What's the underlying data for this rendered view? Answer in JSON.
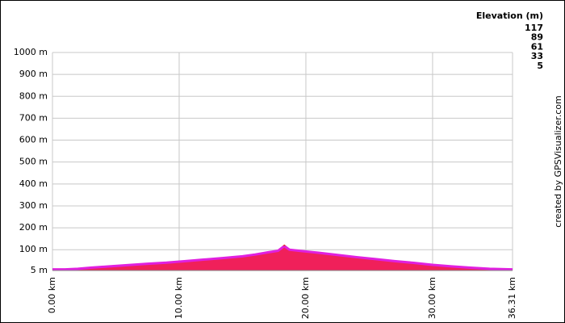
{
  "chart_data": {
    "type": "area",
    "credit": "created by GPSVisualizer.com",
    "legend": {
      "title": "Elevation (m)",
      "items": [
        {
          "value": 117,
          "color": "#e020e0"
        },
        {
          "value": 89,
          "color": "#2040e0"
        },
        {
          "value": 61,
          "color": "#20e040"
        },
        {
          "value": 33,
          "color": "#e0e020"
        },
        {
          "value": 5,
          "color": "#e02020"
        }
      ]
    },
    "fill": "#f0205a",
    "x": [
      0,
      1,
      2,
      3,
      4.5,
      6,
      7.5,
      9,
      10.5,
      12,
      13.5,
      15,
      16,
      17,
      17.8,
      18.3,
      18.7,
      19.5,
      21,
      22.5,
      24,
      25.5,
      27,
      28.5,
      30,
      31.5,
      33,
      34.5,
      36.31
    ],
    "series": [
      {
        "name": "Elevation",
        "values": [
          10,
          10,
          13,
          18,
          24,
          30,
          36,
          41,
          48,
          55,
          62,
          70,
          78,
          88,
          95,
          117,
          100,
          95,
          86,
          76,
          66,
          57,
          48,
          40,
          31,
          24,
          18,
          13,
          10
        ]
      }
    ],
    "xlim": [
      0,
      36.31
    ],
    "ylim": [
      5,
      1000
    ],
    "xticks": [
      {
        "value": 0,
        "label": "0.00 km"
      },
      {
        "value": 10,
        "label": "10.00 km"
      },
      {
        "value": 20,
        "label": "20.00 km"
      },
      {
        "value": 30,
        "label": "30.00 km"
      },
      {
        "value": 36.31,
        "label": "36.31 km"
      }
    ],
    "yticks": [
      {
        "value": 1000,
        "label": "1000 m"
      },
      {
        "value": 900,
        "label": "900 m"
      },
      {
        "value": 800,
        "label": "800 m"
      },
      {
        "value": 700,
        "label": "700 m"
      },
      {
        "value": 600,
        "label": "600 m"
      },
      {
        "value": 500,
        "label": "500 m"
      },
      {
        "value": 400,
        "label": "400 m"
      },
      {
        "value": 300,
        "label": "300 m"
      },
      {
        "value": 200,
        "label": "200 m"
      },
      {
        "value": 100,
        "label": "100 m"
      },
      {
        "value": 5,
        "label": "5 m"
      }
    ],
    "grid": true
  }
}
